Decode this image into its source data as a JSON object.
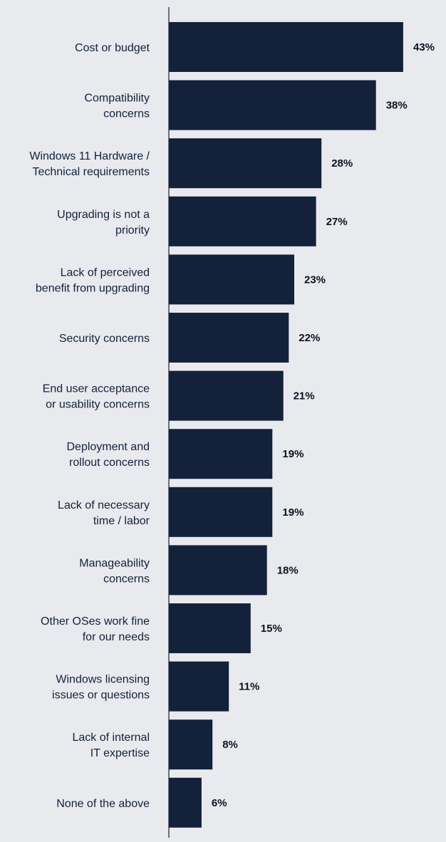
{
  "colors": {
    "background": "#e9eaee",
    "bar": "#13213b",
    "axis": "#13213b",
    "category_text": "#13213b",
    "value_text": "#0e1220"
  },
  "chart_data": {
    "type": "bar",
    "orientation": "horizontal",
    "title": "",
    "xlabel": "",
    "ylabel": "",
    "xlim": [
      0,
      50
    ],
    "grid": false,
    "legend": "none",
    "categories": [
      [
        "Cost or budget"
      ],
      [
        "Compatibility",
        "concerns"
      ],
      [
        "Windows 11 Hardware /",
        "Technical requirements"
      ],
      [
        "Upgrading is not a",
        "priority"
      ],
      [
        "Lack of perceived",
        "benefit from upgrading"
      ],
      [
        "Security concerns"
      ],
      [
        "End user acceptance",
        "or usability concerns"
      ],
      [
        "Deployment and",
        "rollout concerns"
      ],
      [
        "Lack of necessary",
        "time / labor"
      ],
      [
        "Manageability",
        "concerns"
      ],
      [
        "Other OSes work fine",
        "for our needs"
      ],
      [
        "Windows licensing",
        "issues or questions"
      ],
      [
        "Lack of internal",
        "IT expertise"
      ],
      [
        "None of the above"
      ]
    ],
    "values": [
      43,
      38,
      28,
      27,
      23,
      22,
      21,
      19,
      19,
      18,
      15,
      11,
      8,
      6
    ],
    "value_labels": [
      "43%",
      "38%",
      "28%",
      "27%",
      "23%",
      "22%",
      "21%",
      "19%",
      "19%",
      "18%",
      "15%",
      "11%",
      "8%",
      "6%"
    ]
  }
}
